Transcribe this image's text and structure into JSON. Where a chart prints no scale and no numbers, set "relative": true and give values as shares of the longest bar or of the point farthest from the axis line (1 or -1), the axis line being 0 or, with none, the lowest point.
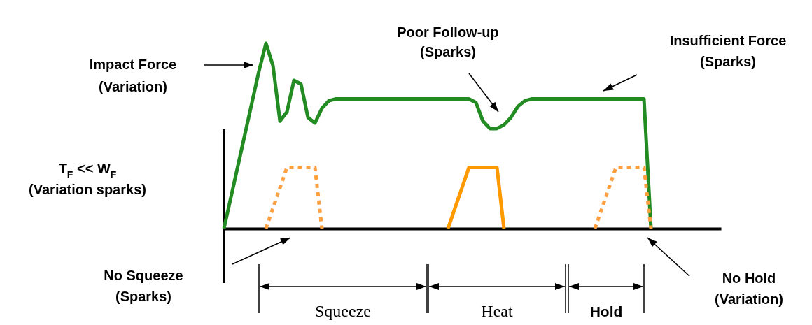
{
  "chart_data": {
    "type": "line",
    "relative": true,
    "categories": [
      null,
      null,
      null,
      null,
      null,
      null,
      null,
      null,
      null,
      null,
      null,
      null,
      null,
      null,
      null,
      null,
      null,
      null,
      null,
      null,
      null,
      null,
      null,
      null,
      null,
      null,
      null,
      null,
      null,
      null,
      null,
      null,
      null,
      null,
      null,
      null,
      null,
      null,
      null,
      null,
      null,
      null,
      null,
      null,
      null,
      null,
      null,
      null,
      null,
      null,
      null,
      null,
      null,
      null,
      null,
      null,
      null,
      null,
      null,
      null,
      null,
      null,
      null,
      null,
      null,
      null,
      null,
      null,
      null,
      null,
      null,
      null
    ],
    "series": [
      {
        "color": "#228b22",
        "line_style": "solid",
        "values": [
          0,
          0.17,
          0.34,
          0.51,
          0.68,
          0.85,
          1,
          0.88,
          0.58,
          0.63,
          0.8,
          0.78,
          0.6,
          0.57,
          0.65,
          0.69,
          0.7,
          0.7,
          0.7,
          0.7,
          0.7,
          0.7,
          0.7,
          0.7,
          0.7,
          0.7,
          0.7,
          0.7,
          0.7,
          0.7,
          0.7,
          0.7,
          0.7,
          0.7,
          0.7,
          0.7,
          0.68,
          0.58,
          0.54,
          0.54,
          0.56,
          0.6,
          0.66,
          0.69,
          0.7,
          0.7,
          0.7,
          0.7,
          0.7,
          0.7,
          0.7,
          0.7,
          0.7,
          0.7,
          0.7,
          0.7,
          0.7,
          0.7,
          0.7,
          0.7,
          0.7,
          0,
          null,
          null,
          null,
          null,
          null,
          null,
          null,
          null,
          null,
          null
        ]
      },
      {
        "color": "#ffa040",
        "line_style": "dotted",
        "values": [
          null,
          null,
          null,
          null,
          null,
          null,
          0,
          0.11,
          0.22,
          0.33,
          0.33,
          0.33,
          0.33,
          0.33,
          0,
          null,
          null,
          null,
          null,
          null,
          null,
          null,
          null,
          null,
          null,
          null,
          null,
          null,
          null,
          null,
          null,
          null,
          null,
          null,
          null,
          null,
          null,
          null,
          null,
          null,
          null,
          null,
          null,
          null,
          null,
          null,
          null,
          null,
          null,
          null,
          null,
          null,
          null,
          0,
          0.11,
          0.22,
          0.33,
          0.33,
          0.33,
          0.33,
          0.33,
          0,
          null,
          null,
          null,
          null,
          null,
          null,
          null,
          null,
          null,
          null
        ]
      },
      {
        "color": "#ff9900",
        "line_style": "solid",
        "values": [
          null,
          null,
          null,
          null,
          null,
          null,
          null,
          null,
          null,
          null,
          null,
          null,
          null,
          null,
          null,
          null,
          null,
          null,
          null,
          null,
          null,
          null,
          null,
          null,
          null,
          null,
          null,
          null,
          null,
          null,
          null,
          null,
          0,
          0.11,
          0.22,
          0.33,
          0.33,
          0.33,
          0.33,
          0.33,
          0,
          null,
          null,
          null,
          null,
          null,
          null,
          null,
          null,
          null,
          null,
          null,
          null,
          null,
          null,
          null,
          null,
          null,
          null,
          null,
          null,
          null,
          null,
          null,
          null,
          null,
          null,
          null,
          null,
          null,
          null,
          null
        ]
      }
    ],
    "annotations": [
      "Impact Force\n(Variation)",
      "Poor Follow-up\n(Sparks)",
      "Insufficient Force\n(Sparks)",
      "T$_{F}$ << W$_{F}$\n(Variation sparks)",
      "No Squeeze\n(Sparks)",
      "No Hold\n(Variation)",
      "Squeeze",
      "Heat",
      "Hold"
    ]
  }
}
